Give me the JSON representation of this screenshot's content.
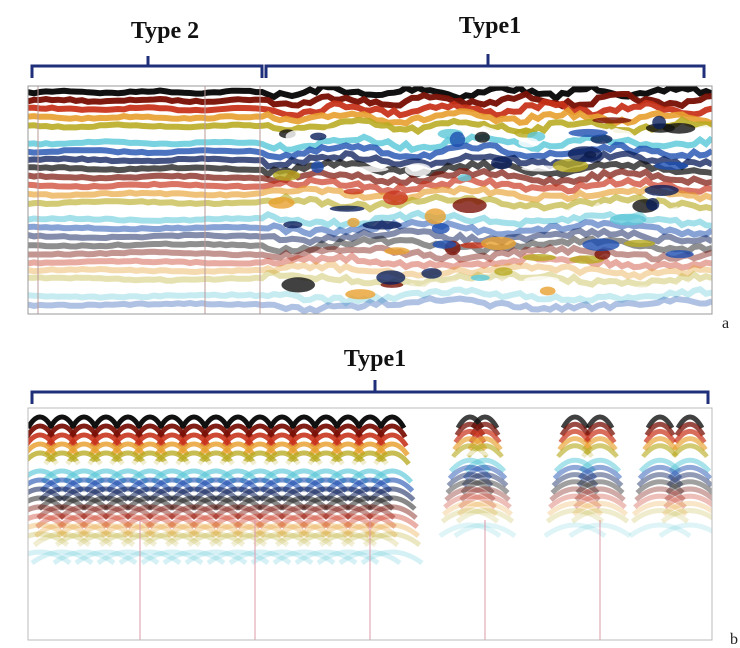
{
  "panel_a": {
    "label_left": "Type 2",
    "label_right": "Type1",
    "tag": "a"
  },
  "panel_b": {
    "label": "Type1",
    "tag": "b"
  }
}
